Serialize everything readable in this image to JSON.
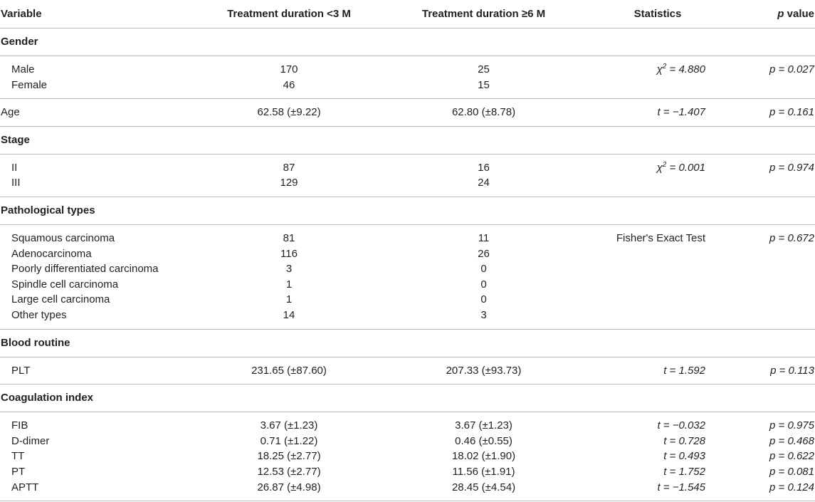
{
  "headers": {
    "variable": "Variable",
    "col_lt3": "Treatment duration <3 M",
    "col_ge6": "Treatment duration ≥6 M",
    "statistics": "Statistics",
    "p_italic": "p",
    "p_rest": " value"
  },
  "gender": {
    "title": "Gender",
    "rows": [
      {
        "name": "Male",
        "lt3": "170",
        "ge6": "25",
        "stat_prefix": "χ",
        "stat_sup": "2",
        "stat_rest": " = 4.880",
        "p": "p = 0.027"
      },
      {
        "name": "Female",
        "lt3": "46",
        "ge6": "15"
      }
    ]
  },
  "age": {
    "name": "Age",
    "lt3": "62.58 (±9.22)",
    "ge6": "62.80 (±8.78)",
    "stat": "t = −1.407",
    "p": "p = 0.161"
  },
  "stage": {
    "title": "Stage",
    "rows": [
      {
        "name": "II",
        "lt3": "87",
        "ge6": "16",
        "stat_prefix": "χ",
        "stat_sup": "2",
        "stat_rest": " = 0.001",
        "p": "p = 0.974"
      },
      {
        "name": "III",
        "lt3": "129",
        "ge6": "24"
      }
    ]
  },
  "pathological": {
    "title": "Pathological types",
    "stat": "Fisher's Exact Test",
    "p": "p = 0.672",
    "rows": [
      {
        "name": "Squamous carcinoma",
        "lt3": "81",
        "ge6": "11"
      },
      {
        "name": "Adenocarcinoma",
        "lt3": "116",
        "ge6": "26"
      },
      {
        "name": "Poorly differentiated carcinoma",
        "lt3": "3",
        "ge6": "0"
      },
      {
        "name": "Spindle cell carcinoma",
        "lt3": "1",
        "ge6": "0"
      },
      {
        "name": "Large cell carcinoma",
        "lt3": "1",
        "ge6": "0"
      },
      {
        "name": "Other types",
        "lt3": "14",
        "ge6": "3"
      }
    ]
  },
  "blood": {
    "title": "Blood routine",
    "rows": [
      {
        "name": "PLT",
        "lt3": "231.65 (±87.60)",
        "ge6": "207.33 (±93.73)",
        "stat": "t = 1.592",
        "p": "p = 0.113"
      }
    ]
  },
  "coagulation": {
    "title": "Coagulation index",
    "rows": [
      {
        "name": "FIB",
        "lt3": "3.67 (±1.23)",
        "ge6": "3.67 (±1.23)",
        "stat": "t = −0.032",
        "p": "p = 0.975"
      },
      {
        "name": "D-dimer",
        "lt3": "0.71 (±1.22)",
        "ge6": "0.46 (±0.55)",
        "stat": "t = 0.728",
        "p": "p = 0.468"
      },
      {
        "name": "TT",
        "lt3": "18.25 (±2.77)",
        "ge6": "18.02 (±1.90)",
        "stat": "t = 0.493",
        "p": "p = 0.622"
      },
      {
        "name": "PT",
        "lt3": "12.53 (±2.77)",
        "ge6": "11.56 (±1.91)",
        "stat": "t = 1.752",
        "p": "p = 0.081"
      },
      {
        "name": "APTT",
        "lt3": "26.87 (±4.98)",
        "ge6": "28.45 (±4.54)",
        "stat": "t = −1.545",
        "p": "p = 0.124"
      }
    ]
  }
}
